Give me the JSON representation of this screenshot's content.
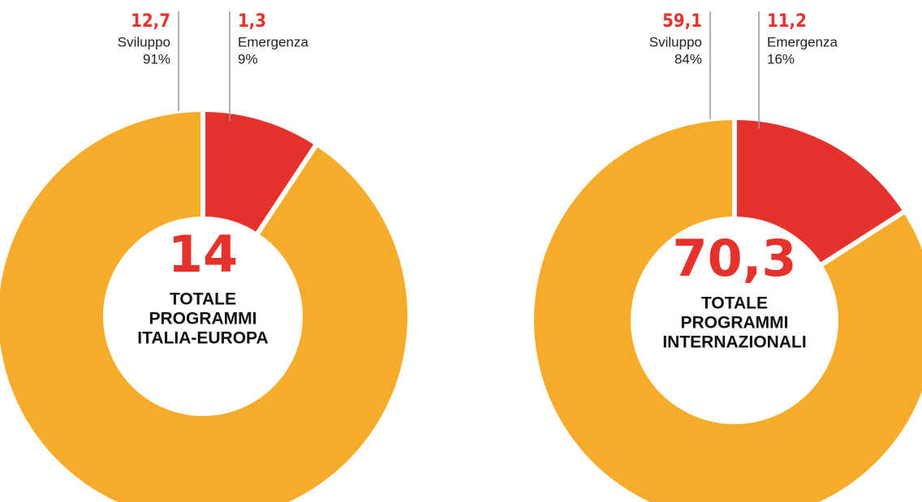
{
  "chart_data": [
    {
      "type": "pie",
      "categories": [
        "Sviluppo",
        "Emergenza"
      ],
      "values": [
        12.7,
        1.3
      ],
      "value_labels": [
        "12,7",
        "1,3"
      ],
      "percentages": [
        91,
        9
      ],
      "percentage_labels": [
        "91%",
        "9%"
      ],
      "colors": [
        "#f5ac2a",
        "#e5322d"
      ],
      "total": 14,
      "label_lines": [
        "TOTALE",
        "PROGRAMMI",
        "ITALIA-EUROPA"
      ]
    },
    {
      "type": "pie",
      "categories": [
        "Sviluppo",
        "Emergenza"
      ],
      "values": [
        59.1,
        11.2
      ],
      "value_labels": [
        "59,1",
        "11,2"
      ],
      "percentages": [
        84,
        16
      ],
      "percentage_labels": [
        "84%",
        "16%"
      ],
      "colors": [
        "#f5ac2a",
        "#e5322d"
      ],
      "total": 70.3,
      "total_label": "70,3",
      "label_lines": [
        "TOTALE",
        "PROGRAMMI",
        "INTERNAZIONALI"
      ]
    }
  ]
}
